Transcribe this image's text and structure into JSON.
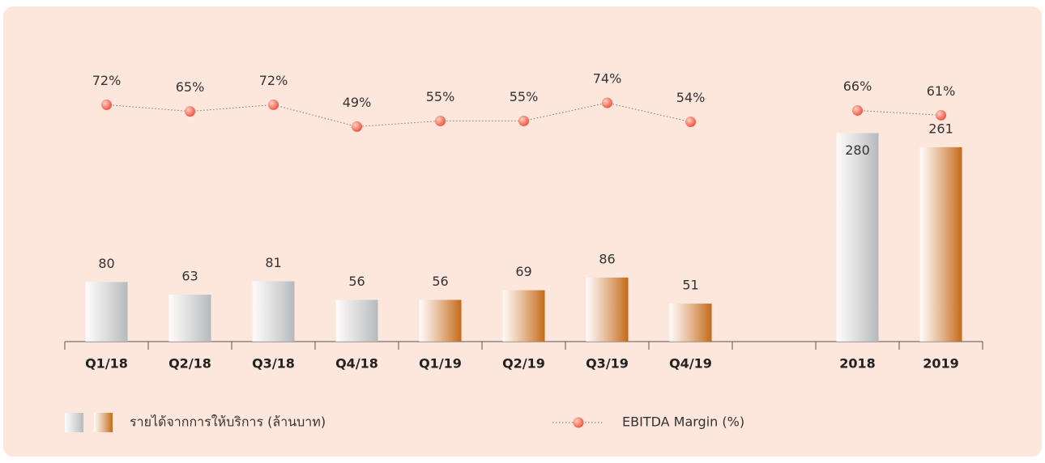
{
  "chart_data": {
    "type": "bar_line",
    "categories": [
      "Q1/18",
      "Q2/18",
      "Q3/18",
      "Q4/18",
      "Q1/19",
      "Q2/19",
      "Q3/19",
      "Q4/19",
      null,
      "2018",
      "2019"
    ],
    "ylim": [
      0,
      300
    ],
    "y2lim": [
      40,
      80
    ],
    "series": [
      {
        "name": "รายได้จากการให้บริการ (ล้านบาท)",
        "type": "bar",
        "colors": [
          "#b5b9bc",
          "#b5b9bc",
          "#b5b9bc",
          "#b5b9bc",
          "#c46a17",
          "#c46a17",
          "#c46a17",
          "#c46a17",
          null,
          "#b5b9bc",
          "#c46a17"
        ],
        "values": [
          80,
          63,
          81,
          56,
          56,
          69,
          86,
          51,
          null,
          280,
          261
        ]
      },
      {
        "name": "EBITDA Margin (%)",
        "type": "line",
        "axis": "y2",
        "color": "#ef4f3c",
        "values": [
          72,
          65,
          72,
          49,
          55,
          55,
          74,
          54,
          null,
          66,
          61
        ],
        "value_labels": [
          "72%",
          "65%",
          "72%",
          "49%",
          "55%",
          "55%",
          "74%",
          "54%",
          null,
          "66%",
          "61%"
        ]
      }
    ]
  }
}
